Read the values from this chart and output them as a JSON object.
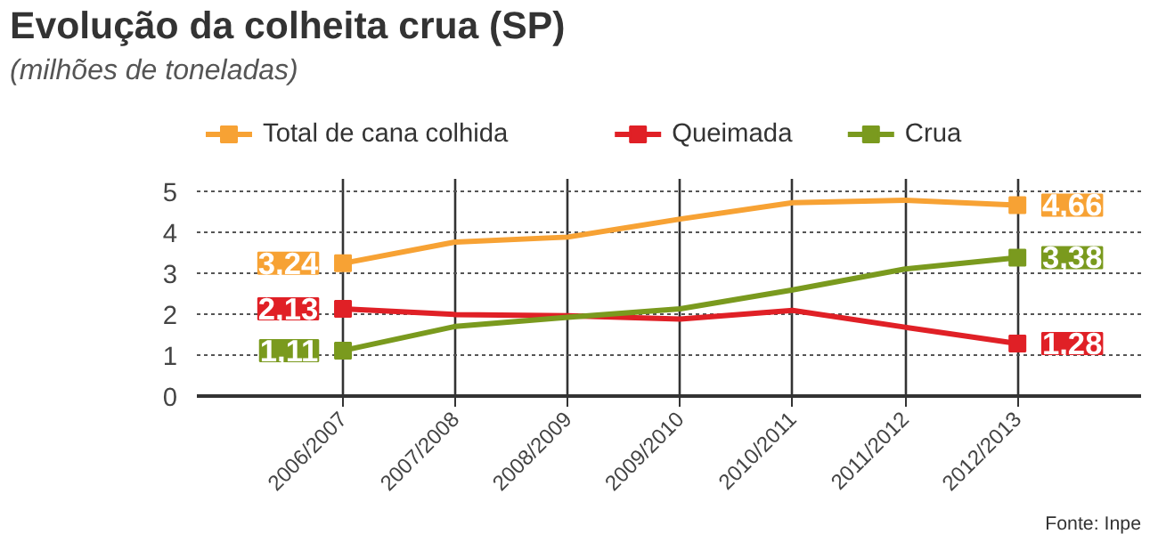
{
  "chart_data": {
    "type": "line",
    "title": "Evolução da colheita crua (SP)",
    "subtitle": "(milhões de toneladas)",
    "categories": [
      "2006/2007",
      "2007/2008",
      "2008/2009",
      "2009/2010",
      "2010/2011",
      "2011/2012",
      "2012/2013"
    ],
    "series": [
      {
        "name": "Total de cana colhida",
        "color": "#f7a234",
        "values": [
          3.24,
          3.76,
          3.88,
          4.32,
          4.72,
          4.78,
          4.66
        ],
        "value_labels": [
          "3,24",
          null,
          null,
          null,
          null,
          null,
          "4,66"
        ]
      },
      {
        "name": "Queimada",
        "color": "#e02026",
        "values": [
          2.13,
          1.99,
          1.96,
          1.88,
          2.09,
          1.68,
          1.28
        ],
        "value_labels": [
          "2,13",
          null,
          null,
          null,
          null,
          null,
          "1,28"
        ]
      },
      {
        "name": "Crua",
        "color": "#7a9a1e",
        "values": [
          1.11,
          1.7,
          1.92,
          2.13,
          2.59,
          3.1,
          3.38
        ],
        "value_labels": [
          "1,11",
          null,
          null,
          null,
          null,
          null,
          "3,38"
        ]
      }
    ],
    "ylim": [
      0,
      5.3
    ],
    "yticks": [
      0,
      1,
      2,
      3,
      4,
      5
    ],
    "grid": true,
    "legend": "top",
    "line_style": "solid",
    "annotations": [
      "Fonte: Inpe"
    ]
  }
}
